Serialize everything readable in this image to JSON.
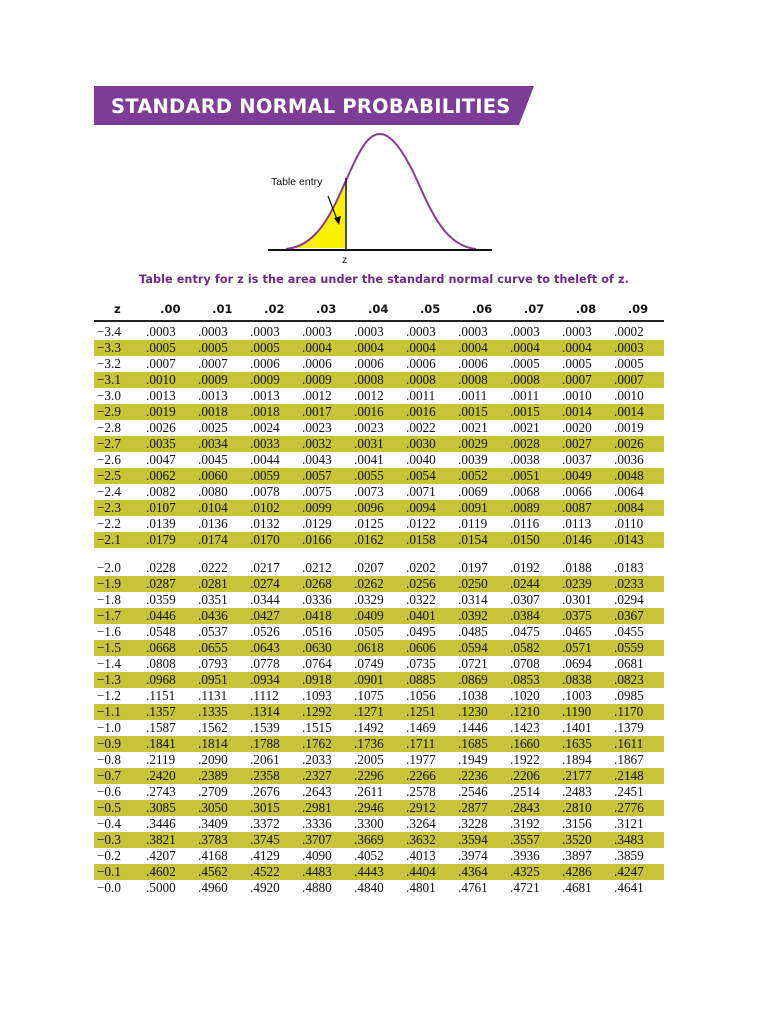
{
  "header": {
    "title": "STANDARD NORMAL PROBABILITIES"
  },
  "figure": {
    "entry_label": "Table entry",
    "z_label": "z"
  },
  "caption": "Table entry for z is the area under the standard normal curve to theleft of z.",
  "colors": {
    "banner": "#7d3d96",
    "highlight": "#c7c43a",
    "curve": "#8a3a99",
    "shade": "#fff200",
    "caption": "#6d2a8a"
  },
  "table": {
    "headers": [
      "z",
      ".00",
      ".01",
      ".02",
      ".03",
      ".04",
      ".05",
      ".06",
      ".07",
      ".08",
      ".09"
    ],
    "blocks": [
      [
        [
          "−3.4",
          ".0003",
          ".0003",
          ".0003",
          ".0003",
          ".0003",
          ".0003",
          ".0003",
          ".0003",
          ".0003",
          ".0002"
        ],
        [
          "−3.3",
          ".0005",
          ".0005",
          ".0005",
          ".0004",
          ".0004",
          ".0004",
          ".0004",
          ".0004",
          ".0004",
          ".0003"
        ],
        [
          "−3.2",
          ".0007",
          ".0007",
          ".0006",
          ".0006",
          ".0006",
          ".0006",
          ".0006",
          ".0005",
          ".0005",
          ".0005"
        ],
        [
          "−3.1",
          ".0010",
          ".0009",
          ".0009",
          ".0009",
          ".0008",
          ".0008",
          ".0008",
          ".0008",
          ".0007",
          ".0007"
        ],
        [
          "−3.0",
          ".0013",
          ".0013",
          ".0013",
          ".0012",
          ".0012",
          ".0011",
          ".0011",
          ".0011",
          ".0010",
          ".0010"
        ],
        [
          "−2.9",
          ".0019",
          ".0018",
          ".0018",
          ".0017",
          ".0016",
          ".0016",
          ".0015",
          ".0015",
          ".0014",
          ".0014"
        ],
        [
          "−2.8",
          ".0026",
          ".0025",
          ".0024",
          ".0023",
          ".0023",
          ".0022",
          ".0021",
          ".0021",
          ".0020",
          ".0019"
        ],
        [
          "−2.7",
          ".0035",
          ".0034",
          ".0033",
          ".0032",
          ".0031",
          ".0030",
          ".0029",
          ".0028",
          ".0027",
          ".0026"
        ],
        [
          "−2.6",
          ".0047",
          ".0045",
          ".0044",
          ".0043",
          ".0041",
          ".0040",
          ".0039",
          ".0038",
          ".0037",
          ".0036"
        ],
        [
          "−2.5",
          ".0062",
          ".0060",
          ".0059",
          ".0057",
          ".0055",
          ".0054",
          ".0052",
          ".0051",
          ".0049",
          ".0048"
        ],
        [
          "−2.4",
          ".0082",
          ".0080",
          ".0078",
          ".0075",
          ".0073",
          ".0071",
          ".0069",
          ".0068",
          ".0066",
          ".0064"
        ],
        [
          "−2.3",
          ".0107",
          ".0104",
          ".0102",
          ".0099",
          ".0096",
          ".0094",
          ".0091",
          ".0089",
          ".0087",
          ".0084"
        ],
        [
          "−2.2",
          ".0139",
          ".0136",
          ".0132",
          ".0129",
          ".0125",
          ".0122",
          ".0119",
          ".0116",
          ".0113",
          ".0110"
        ],
        [
          "−2.1",
          ".0179",
          ".0174",
          ".0170",
          ".0166",
          ".0162",
          ".0158",
          ".0154",
          ".0150",
          ".0146",
          ".0143"
        ]
      ],
      [
        [
          "−2.0",
          ".0228",
          ".0222",
          ".0217",
          ".0212",
          ".0207",
          ".0202",
          ".0197",
          ".0192",
          ".0188",
          ".0183"
        ],
        [
          "−1.9",
          ".0287",
          ".0281",
          ".0274",
          ".0268",
          ".0262",
          ".0256",
          ".0250",
          ".0244",
          ".0239",
          ".0233"
        ],
        [
          "−1.8",
          ".0359",
          ".0351",
          ".0344",
          ".0336",
          ".0329",
          ".0322",
          ".0314",
          ".0307",
          ".0301",
          ".0294"
        ],
        [
          "−1.7",
          ".0446",
          ".0436",
          ".0427",
          ".0418",
          ".0409",
          ".0401",
          ".0392",
          ".0384",
          ".0375",
          ".0367"
        ],
        [
          "−1.6",
          ".0548",
          ".0537",
          ".0526",
          ".0516",
          ".0505",
          ".0495",
          ".0485",
          ".0475",
          ".0465",
          ".0455"
        ],
        [
          "−1.5",
          ".0668",
          ".0655",
          ".0643",
          ".0630",
          ".0618",
          ".0606",
          ".0594",
          ".0582",
          ".0571",
          ".0559"
        ],
        [
          "−1.4",
          ".0808",
          ".0793",
          ".0778",
          ".0764",
          ".0749",
          ".0735",
          ".0721",
          ".0708",
          ".0694",
          ".0681"
        ],
        [
          "−1.3",
          ".0968",
          ".0951",
          ".0934",
          ".0918",
          ".0901",
          ".0885",
          ".0869",
          ".0853",
          ".0838",
          ".0823"
        ],
        [
          "−1.2",
          ".1151",
          ".1131",
          ".1112",
          ".1093",
          ".1075",
          ".1056",
          ".1038",
          ".1020",
          ".1003",
          ".0985"
        ],
        [
          "−1.1",
          ".1357",
          ".1335",
          ".1314",
          ".1292",
          ".1271",
          ".1251",
          ".1230",
          ".1210",
          ".1190",
          ".1170"
        ],
        [
          "−1.0",
          ".1587",
          ".1562",
          ".1539",
          ".1515",
          ".1492",
          ".1469",
          ".1446",
          ".1423",
          ".1401",
          ".1379"
        ],
        [
          "−0.9",
          ".1841",
          ".1814",
          ".1788",
          ".1762",
          ".1736",
          ".1711",
          ".1685",
          ".1660",
          ".1635",
          ".1611"
        ],
        [
          "−0.8",
          ".2119",
          ".2090",
          ".2061",
          ".2033",
          ".2005",
          ".1977",
          ".1949",
          ".1922",
          ".1894",
          ".1867"
        ],
        [
          "−0.7",
          ".2420",
          ".2389",
          ".2358",
          ".2327",
          ".2296",
          ".2266",
          ".2236",
          ".2206",
          ".2177",
          ".2148"
        ],
        [
          "−0.6",
          ".2743",
          ".2709",
          ".2676",
          ".2643",
          ".2611",
          ".2578",
          ".2546",
          ".2514",
          ".2483",
          ".2451"
        ],
        [
          "−0.5",
          ".3085",
          ".3050",
          ".3015",
          ".2981",
          ".2946",
          ".2912",
          ".2877",
          ".2843",
          ".2810",
          ".2776"
        ],
        [
          "−0.4",
          ".3446",
          ".3409",
          ".3372",
          ".3336",
          ".3300",
          ".3264",
          ".3228",
          ".3192",
          ".3156",
          ".3121"
        ],
        [
          "−0.3",
          ".3821",
          ".3783",
          ".3745",
          ".3707",
          ".3669",
          ".3632",
          ".3594",
          ".3557",
          ".3520",
          ".3483"
        ],
        [
          "−0.2",
          ".4207",
          ".4168",
          ".4129",
          ".4090",
          ".4052",
          ".4013",
          ".3974",
          ".3936",
          ".3897",
          ".3859"
        ],
        [
          "−0.1",
          ".4602",
          ".4562",
          ".4522",
          ".4483",
          ".4443",
          ".4404",
          ".4364",
          ".4325",
          ".4286",
          ".4247"
        ],
        [
          "−0.0",
          ".5000",
          ".4960",
          ".4920",
          ".4880",
          ".4840",
          ".4801",
          ".4761",
          ".4721",
          ".4681",
          ".4641"
        ]
      ]
    ]
  }
}
